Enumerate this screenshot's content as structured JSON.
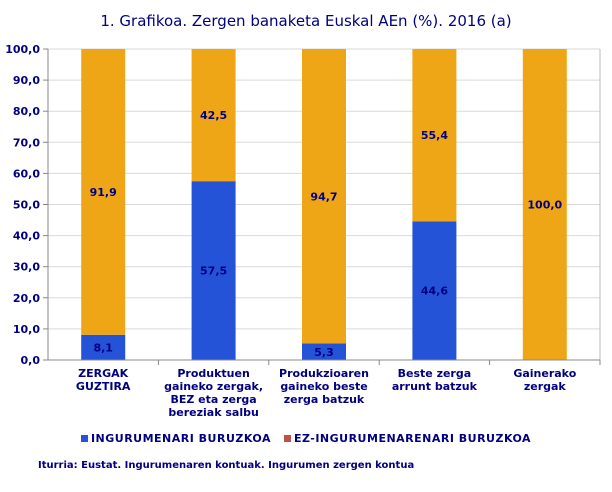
{
  "chart_data": {
    "type": "bar",
    "stacked": true,
    "title": "1. Grafikoa. Zergen banaketa Euskal AEn (%). 2016 (a)",
    "categories": [
      [
        "ZERGAK",
        "GUZTIRA"
      ],
      [
        "Produktuen",
        "gaineko zergak,",
        "BEZ eta zerga",
        "bereziak salbu"
      ],
      [
        "Produkzioaren",
        "gaineko beste",
        "zerga batzuk"
      ],
      [
        "Beste zerga",
        "arrunt batzuk"
      ],
      [
        "Gainerako",
        "zergak"
      ]
    ],
    "series": [
      {
        "name": "INGURUMENARI BURUZKOA",
        "color": "#2553d8",
        "values": [
          8.1,
          57.5,
          5.3,
          44.6,
          0
        ],
        "labels": [
          "8,1",
          "57,5",
          "5,3",
          "44,6",
          ""
        ]
      },
      {
        "name": "EZ-INGURUMENARENARI BURUZKOA",
        "color": "#eea616",
        "legend_color": "#c0504d",
        "values": [
          91.9,
          42.5,
          94.7,
          55.4,
          100.0
        ],
        "labels": [
          "91,9",
          "42,5",
          "94,7",
          "55,4",
          "100,0"
        ]
      }
    ],
    "yticks": [
      "0,0",
      "10,0",
      "20,0",
      "30,0",
      "40,0",
      "50,0",
      "60,0",
      "70,0",
      "80,0",
      "90,0",
      "100,0"
    ],
    "ylim": [
      0,
      100
    ],
    "grid": true,
    "legend": "bottom"
  },
  "source": "Iturria: Eustat. Ingurumenaren kontuak. Ingurumen zergen kontua"
}
